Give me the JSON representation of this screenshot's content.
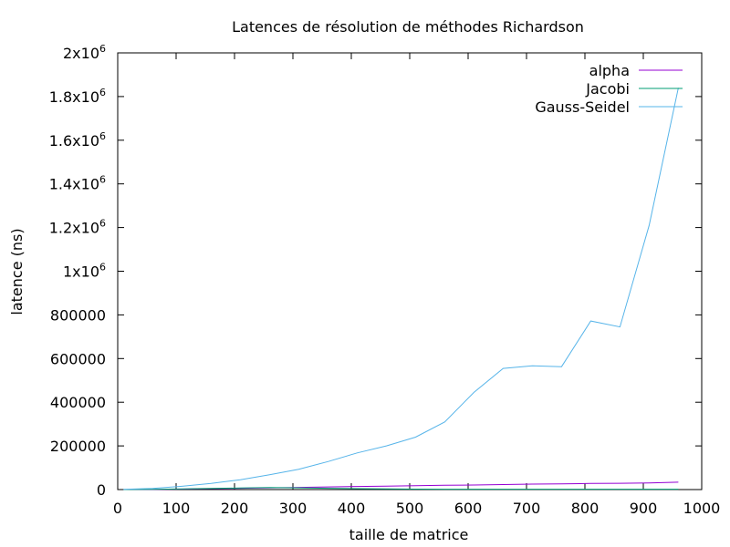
{
  "chart_data": {
    "type": "line",
    "title": "Latences de résolution de méthodes Richardson",
    "xlabel": "taille de matrice",
    "ylabel": "latence (ns)",
    "xlim": [
      0,
      1000
    ],
    "ylim": [
      0,
      2000000
    ],
    "x_ticks": [
      {
        "value": 0,
        "label": "0"
      },
      {
        "value": 100,
        "label": "100"
      },
      {
        "value": 200,
        "label": "200"
      },
      {
        "value": 300,
        "label": "300"
      },
      {
        "value": 400,
        "label": "400"
      },
      {
        "value": 500,
        "label": "500"
      },
      {
        "value": 600,
        "label": "600"
      },
      {
        "value": 700,
        "label": "700"
      },
      {
        "value": 800,
        "label": "800"
      },
      {
        "value": 900,
        "label": "900"
      },
      {
        "value": 1000,
        "label": "1000"
      }
    ],
    "y_ticks": [
      {
        "value": 0,
        "label": "0",
        "exp": ""
      },
      {
        "value": 200000,
        "label": "200000",
        "exp": ""
      },
      {
        "value": 400000,
        "label": "400000",
        "exp": ""
      },
      {
        "value": 600000,
        "label": "600000",
        "exp": ""
      },
      {
        "value": 800000,
        "label": "800000",
        "exp": ""
      },
      {
        "value": 1000000,
        "label": "1x10",
        "exp": "6"
      },
      {
        "value": 1200000,
        "label": "1.2x10",
        "exp": "6"
      },
      {
        "value": 1400000,
        "label": "1.4x10",
        "exp": "6"
      },
      {
        "value": 1600000,
        "label": "1.6x10",
        "exp": "6"
      },
      {
        "value": 1800000,
        "label": "1.8x10",
        "exp": "6"
      },
      {
        "value": 2000000,
        "label": "2x10",
        "exp": "6"
      }
    ],
    "grid": false,
    "legend_position": "top-right",
    "x": [
      10,
      60,
      110,
      160,
      210,
      260,
      310,
      360,
      410,
      460,
      510,
      560,
      610,
      660,
      710,
      760,
      810,
      860,
      910,
      960
    ],
    "series": [
      {
        "name": "alpha",
        "color": "#9400d3",
        "values": [
          0,
          500,
          2000,
          4000,
          6000,
          8000,
          10000,
          12000,
          14000,
          16000,
          18000,
          20000,
          21000,
          23000,
          25000,
          26000,
          28000,
          29000,
          30000,
          34000
        ]
      },
      {
        "name": "Jacobi",
        "color": "#009e73",
        "values": [
          0,
          1000,
          3000,
          5000,
          7000,
          9000,
          8000,
          6000,
          4000,
          3000,
          2000,
          1500,
          1500,
          1500,
          1500,
          1500,
          1500,
          1500,
          1500,
          1500
        ]
      },
      {
        "name": "Gauss-Seidel",
        "color": "#56b4e9",
        "values": [
          1000,
          5000,
          15000,
          28000,
          45000,
          68000,
          93000,
          128000,
          168000,
          200000,
          240000,
          310000,
          445000,
          555000,
          567000,
          563000,
          772000,
          745000,
          1210000,
          1840000
        ]
      }
    ]
  }
}
